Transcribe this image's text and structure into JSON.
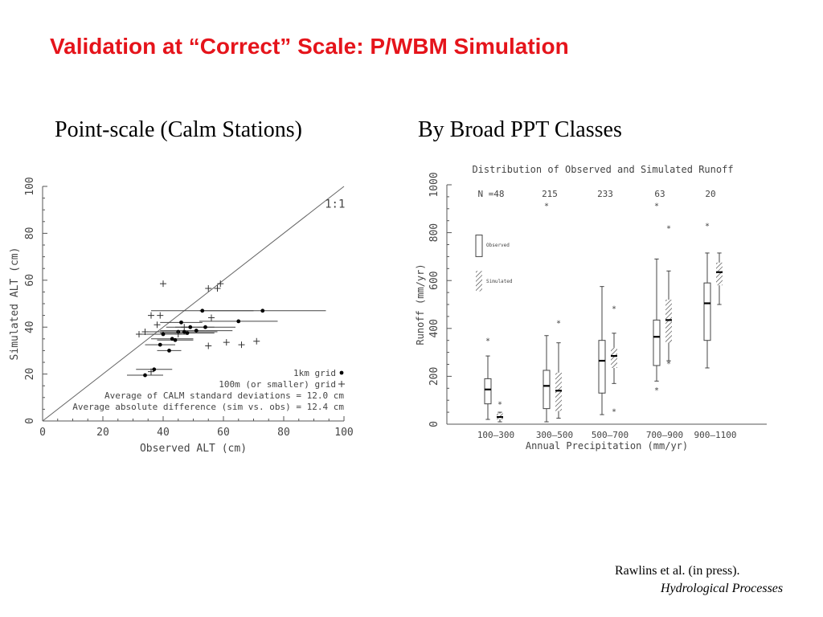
{
  "slide": {
    "title": "Validation at “Correct” Scale: P/WBM Simulation",
    "left_subtitle": "Point-scale (Calm Stations)",
    "right_subtitle": "By Broad PPT Classes",
    "citation_line1": "Rawlins et al. (in press).",
    "citation_line2": "Hydrological Processes"
  },
  "chart_data": [
    {
      "type": "scatter",
      "xlabel": "Observed ALT (cm)",
      "ylabel": "Simulated ALT (cm)",
      "xlim": [
        0,
        100
      ],
      "ylim": [
        0,
        100
      ],
      "xticks": [
        0,
        20,
        40,
        60,
        80,
        100
      ],
      "yticks": [
        0,
        20,
        40,
        60,
        80,
        100
      ],
      "grid": false,
      "reference_line_label": "1:1",
      "legend": [
        {
          "label": "1km grid",
          "marker": "dot"
        },
        {
          "label": "100m (or smaller) grid",
          "marker": "plus"
        }
      ],
      "annotations": [
        "Average of CALM standard deviations = 12.0 cm",
        "Average absolute difference (sim vs. obs) = 12.4 cm"
      ],
      "series": [
        {
          "name": "1km grid",
          "marker": "dot",
          "points": [
            {
              "x": 34,
              "y": 19.5,
              "err": 6
            },
            {
              "x": 37,
              "y": 22,
              "err": 6
            },
            {
              "x": 39,
              "y": 32.5,
              "err": 5
            },
            {
              "x": 40,
              "y": 37,
              "err": 8
            },
            {
              "x": 42,
              "y": 30,
              "err": 4
            },
            {
              "x": 43,
              "y": 35,
              "err": 7
            },
            {
              "x": 44,
              "y": 34.5,
              "err": 6
            },
            {
              "x": 45,
              "y": 38,
              "err": 10
            },
            {
              "x": 46,
              "y": 42,
              "err": 7
            },
            {
              "x": 47,
              "y": 38,
              "err": 11
            },
            {
              "x": 48,
              "y": 37.5,
              "err": 9
            },
            {
              "x": 49,
              "y": 40,
              "err": 8
            },
            {
              "x": 51,
              "y": 38.5,
              "err": 12
            },
            {
              "x": 53,
              "y": 47,
              "err": 17
            },
            {
              "x": 54,
              "y": 40,
              "err": 10
            },
            {
              "x": 65,
              "y": 42.5,
              "err": 13
            },
            {
              "x": 73,
              "y": 47,
              "err": 21
            }
          ]
        },
        {
          "name": "100m (or smaller) grid",
          "marker": "plus",
          "points": [
            {
              "x": 32,
              "y": 37
            },
            {
              "x": 34,
              "y": 38
            },
            {
              "x": 36,
              "y": 21
            },
            {
              "x": 36,
              "y": 45
            },
            {
              "x": 38,
              "y": 41
            },
            {
              "x": 39,
              "y": 45
            },
            {
              "x": 40,
              "y": 58.5
            },
            {
              "x": 45,
              "y": 37
            },
            {
              "x": 47,
              "y": 40
            },
            {
              "x": 55,
              "y": 32
            },
            {
              "x": 55,
              "y": 56.5
            },
            {
              "x": 56,
              "y": 44
            },
            {
              "x": 58,
              "y": 56.5
            },
            {
              "x": 59,
              "y": 58.5
            },
            {
              "x": 61,
              "y": 33.5
            },
            {
              "x": 66,
              "y": 32.5
            },
            {
              "x": 71,
              "y": 34
            }
          ]
        }
      ]
    },
    {
      "type": "box",
      "title": "Distribution of Observed and Simulated Runoff",
      "xlabel": "Annual Precipitation (mm/yr)",
      "ylabel": "Runoff (mm/yr)",
      "ylim": [
        0,
        1000
      ],
      "yticks": [
        0,
        200,
        400,
        600,
        800,
        1000
      ],
      "categories": [
        "100–300",
        "300–500",
        "500–700",
        "700–900",
        "900–1100"
      ],
      "n_label_prefix": "N =",
      "n": [
        "48",
        "215",
        "233",
        "63",
        "20"
      ],
      "legend": [
        {
          "label": "Observed",
          "style": "open"
        },
        {
          "label": "Simulated",
          "style": "hatched"
        }
      ],
      "series": [
        {
          "name": "Observed",
          "boxes": [
            {
              "min": 20,
              "q1": 85,
              "median": 145,
              "q3": 190,
              "max": 285,
              "outliers": [
                350
              ]
            },
            {
              "min": 10,
              "q1": 65,
              "median": 160,
              "q3": 225,
              "max": 370,
              "outliers": [
                915
              ]
            },
            {
              "min": 40,
              "q1": 130,
              "median": 265,
              "q3": 350,
              "max": 575,
              "outliers": []
            },
            {
              "min": 180,
              "q1": 245,
              "median": 365,
              "q3": 435,
              "max": 690,
              "outliers": [
                145,
                915
              ]
            },
            {
              "min": 235,
              "q1": 350,
              "median": 505,
              "q3": 590,
              "max": 715,
              "outliers": [
                830
              ]
            }
          ]
        },
        {
          "name": "Simulated",
          "boxes": [
            {
              "min": 10,
              "q1": 20,
              "median": 30,
              "q3": 45,
              "max": 50,
              "outliers": [
                85
              ]
            },
            {
              "min": 25,
              "q1": 55,
              "median": 140,
              "q3": 215,
              "max": 340,
              "outliers": [
                425
              ]
            },
            {
              "min": 170,
              "q1": 235,
              "median": 285,
              "q3": 320,
              "max": 380,
              "outliers": [
                55,
                485
              ]
            },
            {
              "min": 265,
              "q1": 340,
              "median": 435,
              "q3": 520,
              "max": 640,
              "outliers": [
                255,
                820
              ]
            },
            {
              "min": 500,
              "q1": 580,
              "median": 635,
              "q3": 675,
              "max": 715,
              "outliers": []
            }
          ]
        }
      ]
    }
  ]
}
